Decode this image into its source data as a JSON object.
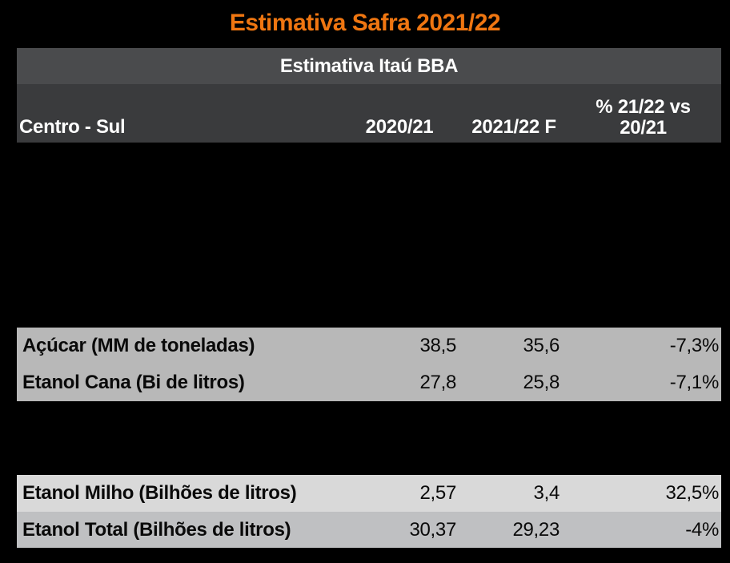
{
  "title": "Estimativa Safra 2021/22",
  "colors": {
    "page_bg": "#000000",
    "accent_orange": "#EF7611",
    "header_band1": "#4A4B4D",
    "header_band2": "#3A3B3D",
    "row_cane_bg": "#B8B8B8",
    "row_milho_bg": "#D9D9D9",
    "row_total_bg": "#BFC0C2"
  },
  "table": {
    "section_title": "Estimativa Itaú BBA",
    "header": {
      "col1": "Centro - Sul",
      "col2": "2020/21",
      "col3": "2021/22 F",
      "col4_line1": "% 21/22 vs",
      "col4_line2": "20/21"
    },
    "rows": [
      {
        "label": "Açúcar (MM de toneladas)",
        "v2020_21": "38,5",
        "v2021_22f": "35,6",
        "pct": "-7,3%"
      },
      {
        "label": "Etanol Cana (Bi de litros)",
        "v2020_21": "27,8",
        "v2021_22f": "25,8",
        "pct": "-7,1%"
      },
      {
        "label": "Etanol Milho (Bilhões de litros)",
        "v2020_21": "2,57",
        "v2021_22f": "3,4",
        "pct": "32,5%"
      },
      {
        "label": "Etanol Total (Bilhões de litros)",
        "v2020_21": "30,37",
        "v2021_22f": "29,23",
        "pct": "-4%"
      }
    ]
  },
  "chart_data": {
    "type": "table",
    "title": "Estimativa Safra 2021/22",
    "subtitle": "Estimativa Itaú BBA",
    "region": "Centro - Sul",
    "columns": [
      "2020/21",
      "2021/22 F",
      "% 21/22 vs 20/21"
    ],
    "rows": [
      {
        "label": "Açúcar (MM de toneladas)",
        "y2020_21": 38.5,
        "y2021_22f": 35.6,
        "pct_change": -7.3
      },
      {
        "label": "Etanol Cana (Bi de litros)",
        "y2020_21": 27.8,
        "y2021_22f": 25.8,
        "pct_change": -7.1
      },
      {
        "label": "Etanol Milho (Bilhões de litros)",
        "y2020_21": 2.57,
        "y2021_22f": 3.4,
        "pct_change": 32.5
      },
      {
        "label": "Etanol Total (Bilhões de litros)",
        "y2020_21": 30.37,
        "y2021_22f": 29.23,
        "pct_change": -4.0
      }
    ]
  }
}
